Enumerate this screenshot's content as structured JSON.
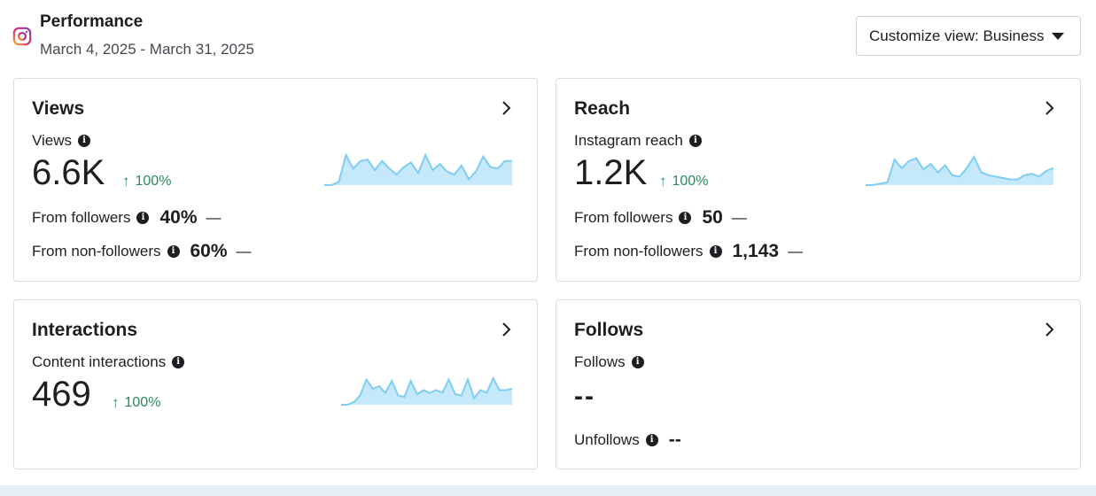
{
  "header": {
    "title": "Performance",
    "date_range": "March 4, 2025 - March 31, 2025",
    "customize_label": "Customize view: Business"
  },
  "cards": {
    "views": {
      "title": "Views",
      "metric_label": "Views",
      "value": "6.6K",
      "delta": "100%",
      "rows": [
        {
          "label": "From followers",
          "value": "40%",
          "trend": "—"
        },
        {
          "label": "From non-followers",
          "value": "60%",
          "trend": "—"
        }
      ],
      "spark": [
        0,
        0,
        0.1,
        1,
        0.55,
        0.8,
        0.85,
        0.5,
        0.8,
        0.55,
        0.35,
        0.6,
        0.75,
        0.4,
        1,
        0.5,
        0.7,
        0.45,
        0.35,
        0.65,
        0.2,
        0.45,
        0.95,
        0.6,
        0.55,
        0.8,
        0.8
      ]
    },
    "reach": {
      "title": "Reach",
      "metric_label": "Instagram reach",
      "value": "1.2K",
      "delta": "100%",
      "rows": [
        {
          "label": "From followers",
          "value": "50",
          "trend": "—"
        },
        {
          "label": "From non-followers",
          "value": "1,143",
          "trend": "—"
        }
      ],
      "spark": [
        0,
        0,
        0.05,
        0.1,
        0.9,
        0.6,
        0.85,
        0.95,
        0.55,
        0.75,
        0.45,
        0.7,
        0.35,
        0.3,
        0.6,
        1,
        0.45,
        0.35,
        0.3,
        0.25,
        0.2,
        0.2,
        0.35,
        0.4,
        0.3,
        0.5,
        0.6
      ]
    },
    "interactions": {
      "title": "Interactions",
      "metric_label": "Content interactions",
      "value": "469",
      "delta": "100%",
      "spark": [
        0,
        0,
        0.1,
        0.35,
        0.95,
        0.6,
        0.7,
        0.45,
        0.9,
        0.35,
        0.3,
        0.9,
        0.4,
        0.55,
        0.45,
        0.55,
        0.45,
        0.95,
        0.4,
        0.35,
        0.95,
        0.25,
        0.55,
        0.45,
        1,
        0.55,
        0.55,
        0.6
      ]
    },
    "follows": {
      "title": "Follows",
      "metric_label": "Follows",
      "value": "--",
      "unfollows_label": "Unfollows",
      "unfollows_value": "--"
    }
  },
  "colors": {
    "spark_fill": "#c5e8fb",
    "spark_line": "#7fcdf5",
    "delta_green": "#2c8a5e"
  },
  "icons": {
    "logo": "instagram-icon",
    "info": "info-icon",
    "chevron": "chevron-right-icon",
    "caret": "caret-down-icon",
    "delta": "arrow-up-icon"
  }
}
